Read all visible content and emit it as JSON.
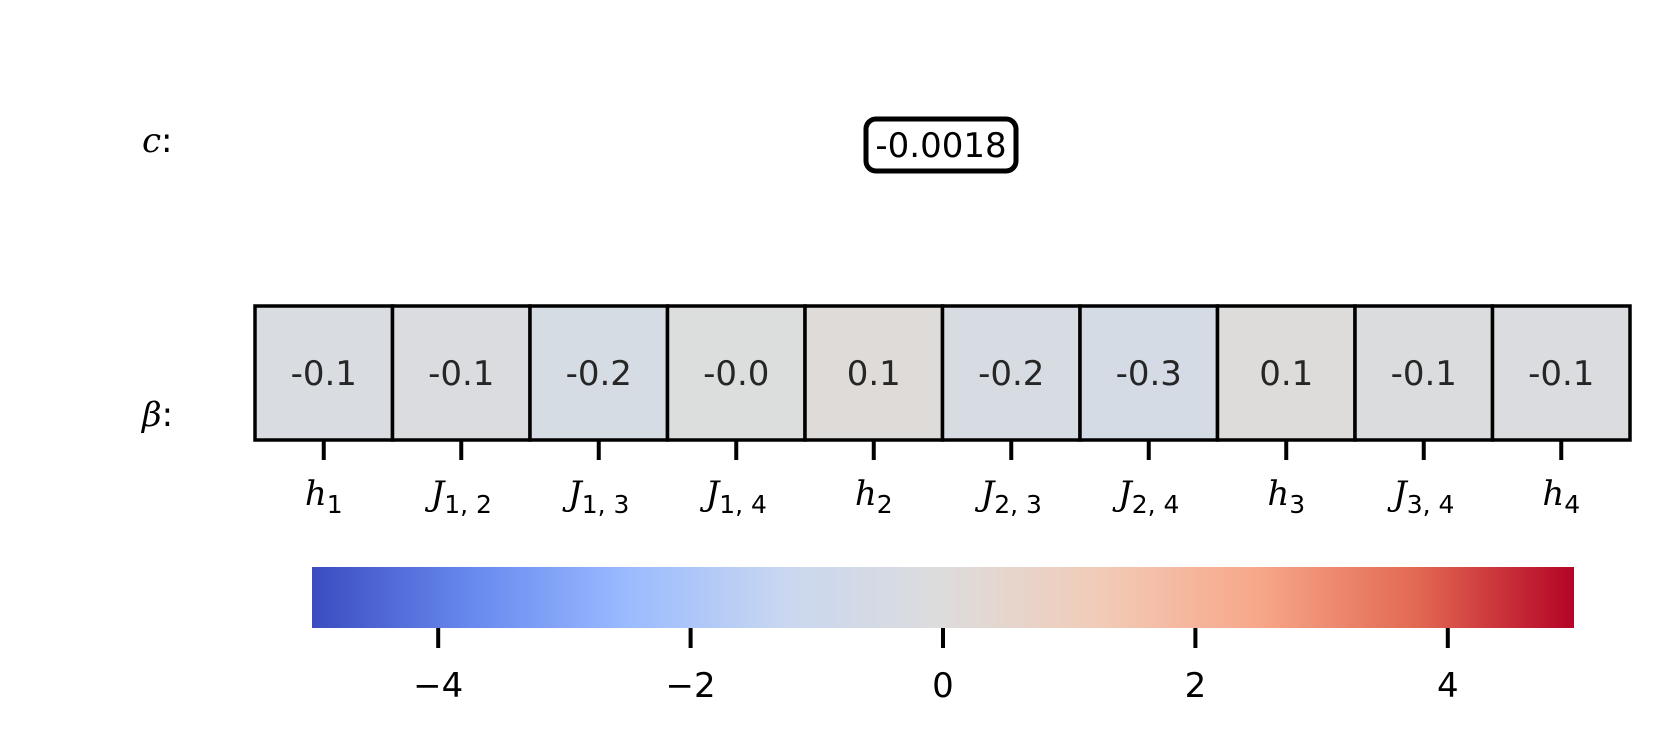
{
  "labels": {
    "c_symbol": "c",
    "beta_symbol": "β",
    "colon": ":"
  },
  "constant": {
    "value_label": "-0.0018"
  },
  "chart_data": {
    "type": "heatmap",
    "cmap": "coolwarm",
    "vmin": -5,
    "vmax": 5,
    "cells": [
      {
        "term": "h",
        "sub": "1",
        "value": -0.1,
        "label": "-0.1",
        "color": "#d9dce1"
      },
      {
        "term": "J",
        "sub": "1, 2",
        "value": -0.1,
        "label": "-0.1",
        "color": "#dadce0"
      },
      {
        "term": "J",
        "sub": "1, 3",
        "value": -0.2,
        "label": "-0.2",
        "color": "#d6dce4"
      },
      {
        "term": "J",
        "sub": "1, 4",
        "value": -0.0,
        "label": "-0.0",
        "color": "#dcdddd"
      },
      {
        "term": "h",
        "sub": "2",
        "value": 0.1,
        "label": "0.1",
        "color": "#dfdbd9"
      },
      {
        "term": "J",
        "sub": "2, 3",
        "value": -0.2,
        "label": "-0.2",
        "color": "#d7dce3"
      },
      {
        "term": "J",
        "sub": "2, 4",
        "value": -0.3,
        "label": "-0.3",
        "color": "#d5dbe5"
      },
      {
        "term": "h",
        "sub": "3",
        "value": 0.1,
        "label": "0.1",
        "color": "#dddcdb"
      },
      {
        "term": "J",
        "sub": "3, 4",
        "value": -0.1,
        "label": "-0.1",
        "color": "#dbdcde"
      },
      {
        "term": "h",
        "sub": "4",
        "value": -0.1,
        "label": "-0.1",
        "color": "#dadcdf"
      }
    ],
    "colorbar": {
      "ticks": [
        -4,
        -2,
        0,
        2,
        4
      ],
      "tick_labels": [
        "−4",
        "−2",
        "0",
        "2",
        "4"
      ],
      "stops": [
        "#3b4cc0",
        "#6788ee",
        "#9abbff",
        "#c9d7f0",
        "#dddcdc",
        "#f2cbb7",
        "#f7a789",
        "#e26952",
        "#b40426"
      ]
    }
  }
}
